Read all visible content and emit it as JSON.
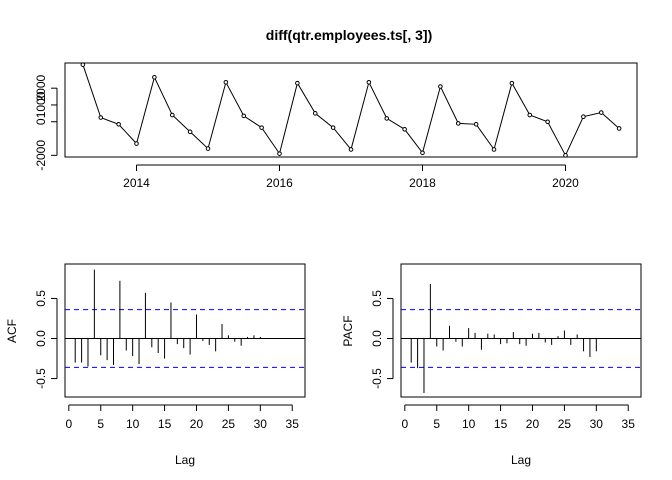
{
  "chart_data": [
    {
      "type": "line",
      "title": "diff(qtr.employees.ts[, 3])",
      "xlabel": "",
      "ylabel": "",
      "xlim": [
        2013.0,
        2021.0
      ],
      "ylim": [
        -2100,
        3500
      ],
      "x_ticks": [
        2014,
        2016,
        2018,
        2020
      ],
      "x_tick_labels": [
        "2014",
        "2016",
        "2018",
        "2020"
      ],
      "y_ticks": [
        -2000,
        0,
        1000,
        2000
      ],
      "y_tick_labels": [
        "-2000",
        "0",
        "1000",
        "2000"
      ],
      "x": [
        2013.25,
        2013.5,
        2013.75,
        2014.0,
        2014.25,
        2014.5,
        2014.75,
        2015.0,
        2015.25,
        2015.5,
        2015.75,
        2016.0,
        2016.25,
        2016.5,
        2016.75,
        2017.0,
        2017.25,
        2017.5,
        2017.75,
        2018.0,
        2018.25,
        2018.5,
        2018.75,
        2019.0,
        2019.25,
        2019.5,
        2019.75,
        2020.0,
        2020.25,
        2020.5,
        2020.75
      ],
      "values": [
        3400,
        250,
        -150,
        -1300,
        2650,
        400,
        -600,
        -1600,
        2350,
        350,
        -350,
        -1900,
        2300,
        500,
        -350,
        -1650,
        2350,
        200,
        -450,
        -1850,
        2100,
        -100,
        -150,
        -1650,
        2300,
        400,
        0,
        -2000,
        300,
        550,
        -400
      ]
    },
    {
      "type": "bar",
      "subtype": "acf",
      "xlabel": "Lag",
      "ylabel": "ACF",
      "xlim": [
        -0.6,
        37
      ],
      "ylim": [
        -0.73,
        0.93
      ],
      "x_ticks": [
        0,
        5,
        10,
        15,
        20,
        25,
        30,
        35
      ],
      "x_tick_labels": [
        "0",
        "5",
        "10",
        "15",
        "20",
        "25",
        "30",
        "35"
      ],
      "y_ticks": [
        -0.5,
        0,
        0.5
      ],
      "y_tick_labels": [
        "-0.5",
        "0.0",
        "0.5"
      ],
      "conf_limit": 0.36,
      "lags": [
        1,
        2,
        3,
        4,
        5,
        6,
        7,
        8,
        9,
        10,
        11,
        12,
        13,
        14,
        15,
        16,
        17,
        18,
        19,
        20,
        21,
        22,
        23,
        24,
        25,
        26,
        27,
        28,
        29,
        30
      ],
      "values": [
        -0.3,
        -0.3,
        -0.35,
        0.86,
        -0.21,
        -0.27,
        -0.33,
        0.72,
        -0.15,
        -0.22,
        -0.32,
        0.57,
        -0.11,
        -0.18,
        -0.25,
        0.45,
        -0.07,
        -0.12,
        -0.2,
        0.3,
        -0.03,
        -0.08,
        -0.16,
        0.18,
        0.04,
        -0.04,
        -0.09,
        0.02,
        0.04,
        0.02
      ]
    },
    {
      "type": "bar",
      "subtype": "pacf",
      "xlabel": "Lag",
      "ylabel": "PACF",
      "xlim": [
        -0.6,
        37
      ],
      "ylim": [
        -0.73,
        0.93
      ],
      "x_ticks": [
        0,
        5,
        10,
        15,
        20,
        25,
        30,
        35
      ],
      "x_tick_labels": [
        "0",
        "5",
        "10",
        "15",
        "20",
        "25",
        "30",
        "35"
      ],
      "y_ticks": [
        -0.5,
        0,
        0.5
      ],
      "y_tick_labels": [
        "-0.5",
        "0.0",
        "0.5"
      ],
      "conf_limit": 0.36,
      "lags": [
        1,
        2,
        3,
        4,
        5,
        6,
        7,
        8,
        9,
        10,
        11,
        12,
        13,
        14,
        15,
        16,
        17,
        18,
        19,
        20,
        21,
        22,
        23,
        24,
        25,
        26,
        27,
        28,
        29,
        30
      ],
      "values": [
        -0.3,
        -0.37,
        -0.68,
        0.68,
        -0.1,
        -0.15,
        0.16,
        -0.04,
        -0.1,
        0.13,
        0.07,
        -0.14,
        0.06,
        0.05,
        -0.07,
        -0.06,
        0.08,
        -0.07,
        -0.09,
        0.06,
        0.07,
        -0.05,
        -0.08,
        0.03,
        0.1,
        -0.08,
        0.05,
        -0.16,
        -0.23,
        -0.16
      ]
    }
  ]
}
